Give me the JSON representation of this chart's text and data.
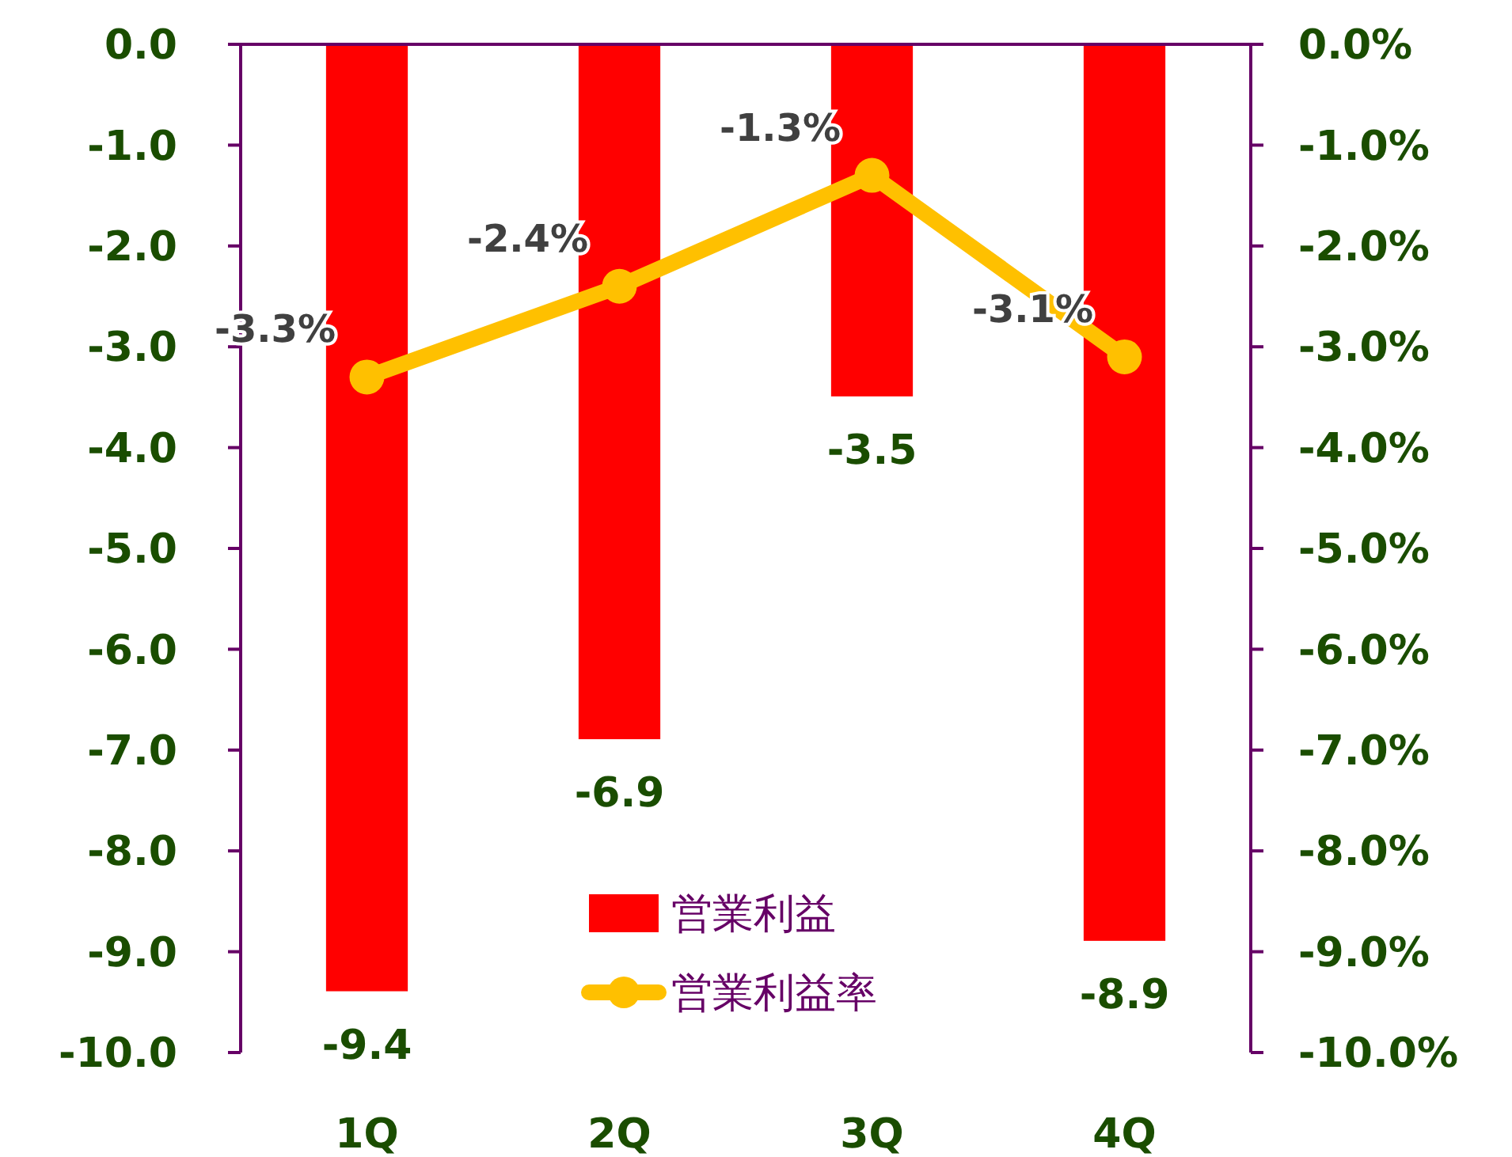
{
  "chart_data": {
    "type": "bar",
    "categories": [
      "1Q",
      "2Q",
      "3Q",
      "4Q"
    ],
    "series": [
      {
        "name": "営業利益",
        "color": "#ff0000",
        "values": [
          -9.4,
          -6.9,
          -3.5,
          -8.9
        ],
        "value_labels": [
          "-9.4",
          "-6.9",
          "-3.5",
          "-8.9"
        ]
      },
      {
        "name": "営業利益率",
        "type": "line",
        "axis": "y2",
        "color": "#ffc000",
        "marker": "circle",
        "values": [
          -3.3,
          -2.4,
          -1.3,
          -3.1
        ],
        "value_labels": [
          "-3.3%",
          "-2.4%",
          "-1.3%",
          "-3.1%"
        ]
      }
    ],
    "ylim": [
      -10,
      0
    ],
    "yticks": [
      {
        "value": 0,
        "label": "0.0"
      },
      {
        "value": -1,
        "label": "-1.0"
      },
      {
        "value": -2,
        "label": "-2.0"
      },
      {
        "value": -3,
        "label": "-3.0"
      },
      {
        "value": -4,
        "label": "-4.0"
      },
      {
        "value": -5,
        "label": "-5.0"
      },
      {
        "value": -6,
        "label": "-6.0"
      },
      {
        "value": -7,
        "label": "-7.0"
      },
      {
        "value": -8,
        "label": "-8.0"
      },
      {
        "value": -9,
        "label": "-9.0"
      },
      {
        "value": -10,
        "label": "-10.0"
      }
    ],
    "y2lim": [
      -10,
      0
    ],
    "y2ticks": [
      {
        "value": 0,
        "label": "0.0%"
      },
      {
        "value": -1,
        "label": "-1.0%"
      },
      {
        "value": -2,
        "label": "-2.0%"
      },
      {
        "value": -3,
        "label": "-3.0%"
      },
      {
        "value": -4,
        "label": "-4.0%"
      },
      {
        "value": -5,
        "label": "-5.0%"
      },
      {
        "value": -6,
        "label": "-6.0%"
      },
      {
        "value": -7,
        "label": "-7.0%"
      },
      {
        "value": -8,
        "label": "-8.0%"
      },
      {
        "value": -9,
        "label": "-9.0%"
      },
      {
        "value": -10,
        "label": "-10.0%"
      }
    ],
    "legend": "bottom"
  }
}
